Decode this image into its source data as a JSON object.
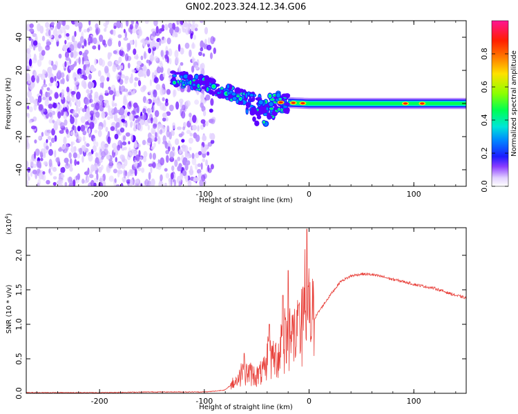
{
  "title": "GN02.2023.324.12.34.G06",
  "colors": {
    "snr_line": "#e8403a",
    "axes": "#000000",
    "colormap": [
      "#ffffff",
      "#e3d2ff",
      "#b78cff",
      "#8a3cff",
      "#5b00ff",
      "#1b1cff",
      "#0089ff",
      "#00e6d8",
      "#00ff52",
      "#8cff00",
      "#ffe100",
      "#ff7a00",
      "#ff1f00",
      "#ff1493"
    ]
  },
  "chart_data": [
    {
      "type": "heatmap",
      "name": "spectrogram",
      "xlabel": "Height of straight line (km)",
      "ylabel": "Frequency (Hz)",
      "xlim": [
        -270,
        150
      ],
      "ylim": [
        -50,
        50
      ],
      "xticks": [
        -200,
        -100,
        0,
        100
      ],
      "xtick_labels": [
        "-200",
        "-100",
        "0",
        "100"
      ],
      "yticks": [
        -40,
        -20,
        0,
        20,
        40
      ],
      "ytick_labels": [
        "-40",
        "-20",
        "0",
        "20",
        "40"
      ],
      "colorbar": {
        "label": "Normalized spectral amplitude",
        "range": [
          0,
          1
        ],
        "ticks": [
          0,
          0.2,
          0.4,
          0.6,
          0.8
        ],
        "tick_labels": [
          "0.0",
          "0.2",
          "0.4",
          "0.6",
          "0.8"
        ]
      },
      "features": {
        "noise_region_x": [
          -270,
          -90
        ],
        "signal_onset_x": -130,
        "signal_band": [
          {
            "x": -130,
            "f": 15
          },
          {
            "x": -100,
            "f": 12
          },
          {
            "x": -80,
            "f": 7
          },
          {
            "x": -60,
            "f": 3
          },
          {
            "x": -40,
            "f": 1
          },
          {
            "x": -20,
            "f": 0.5
          },
          {
            "x": 0,
            "f": 0
          },
          {
            "x": 150,
            "f": 0
          }
        ],
        "carrier_halfwidth_hz": 2.5,
        "strong_peaks_x": [
          -27,
          -15,
          -6,
          92,
          108
        ]
      }
    },
    {
      "type": "line",
      "name": "snr",
      "xlabel": "Height of straight line (km)",
      "ylabel": "SNR (10 * v/v)",
      "yscale_label": "(x10",
      "yscale_exp": "4",
      "xlim": [
        -270,
        150
      ],
      "ylim": [
        0,
        2.4
      ],
      "xticks": [
        -200,
        -100,
        0,
        100
      ],
      "xtick_labels": [
        "-200",
        "-100",
        "0",
        "100"
      ],
      "yticks": [
        0.0,
        0.5,
        1.0,
        1.5,
        2.0
      ],
      "ytick_labels": [
        "0.0",
        "0.5",
        "1.0",
        "1.5",
        "2.0"
      ],
      "series": [
        {
          "name": "SNR",
          "points": [
            [
              -270,
              0.01
            ],
            [
              -200,
              0.01
            ],
            [
              -150,
              0.02
            ],
            [
              -100,
              0.02
            ],
            [
              -90,
              0.03
            ],
            [
              -80,
              0.05
            ],
            [
              -70,
              0.18
            ],
            [
              -60,
              0.3
            ],
            [
              -50,
              0.25
            ],
            [
              -40,
              0.35
            ],
            [
              -30,
              0.55
            ],
            [
              -20,
              0.75
            ],
            [
              -10,
              0.9
            ],
            [
              -2,
              1.0
            ],
            [
              5,
              1.08
            ],
            [
              10,
              1.2
            ],
            [
              20,
              1.42
            ],
            [
              30,
              1.62
            ],
            [
              40,
              1.7
            ],
            [
              50,
              1.73
            ],
            [
              60,
              1.72
            ],
            [
              70,
              1.69
            ],
            [
              80,
              1.65
            ],
            [
              90,
              1.62
            ],
            [
              100,
              1.58
            ],
            [
              110,
              1.55
            ],
            [
              120,
              1.52
            ],
            [
              130,
              1.47
            ],
            [
              140,
              1.42
            ],
            [
              150,
              1.38
            ]
          ],
          "spikes": [
            [
              -62,
              0.58
            ],
            [
              -38,
              1.0
            ],
            [
              -25,
              1.42
            ],
            [
              -20,
              1.78
            ],
            [
              -10,
              1.28
            ],
            [
              -2,
              2.38
            ]
          ]
        }
      ]
    }
  ]
}
